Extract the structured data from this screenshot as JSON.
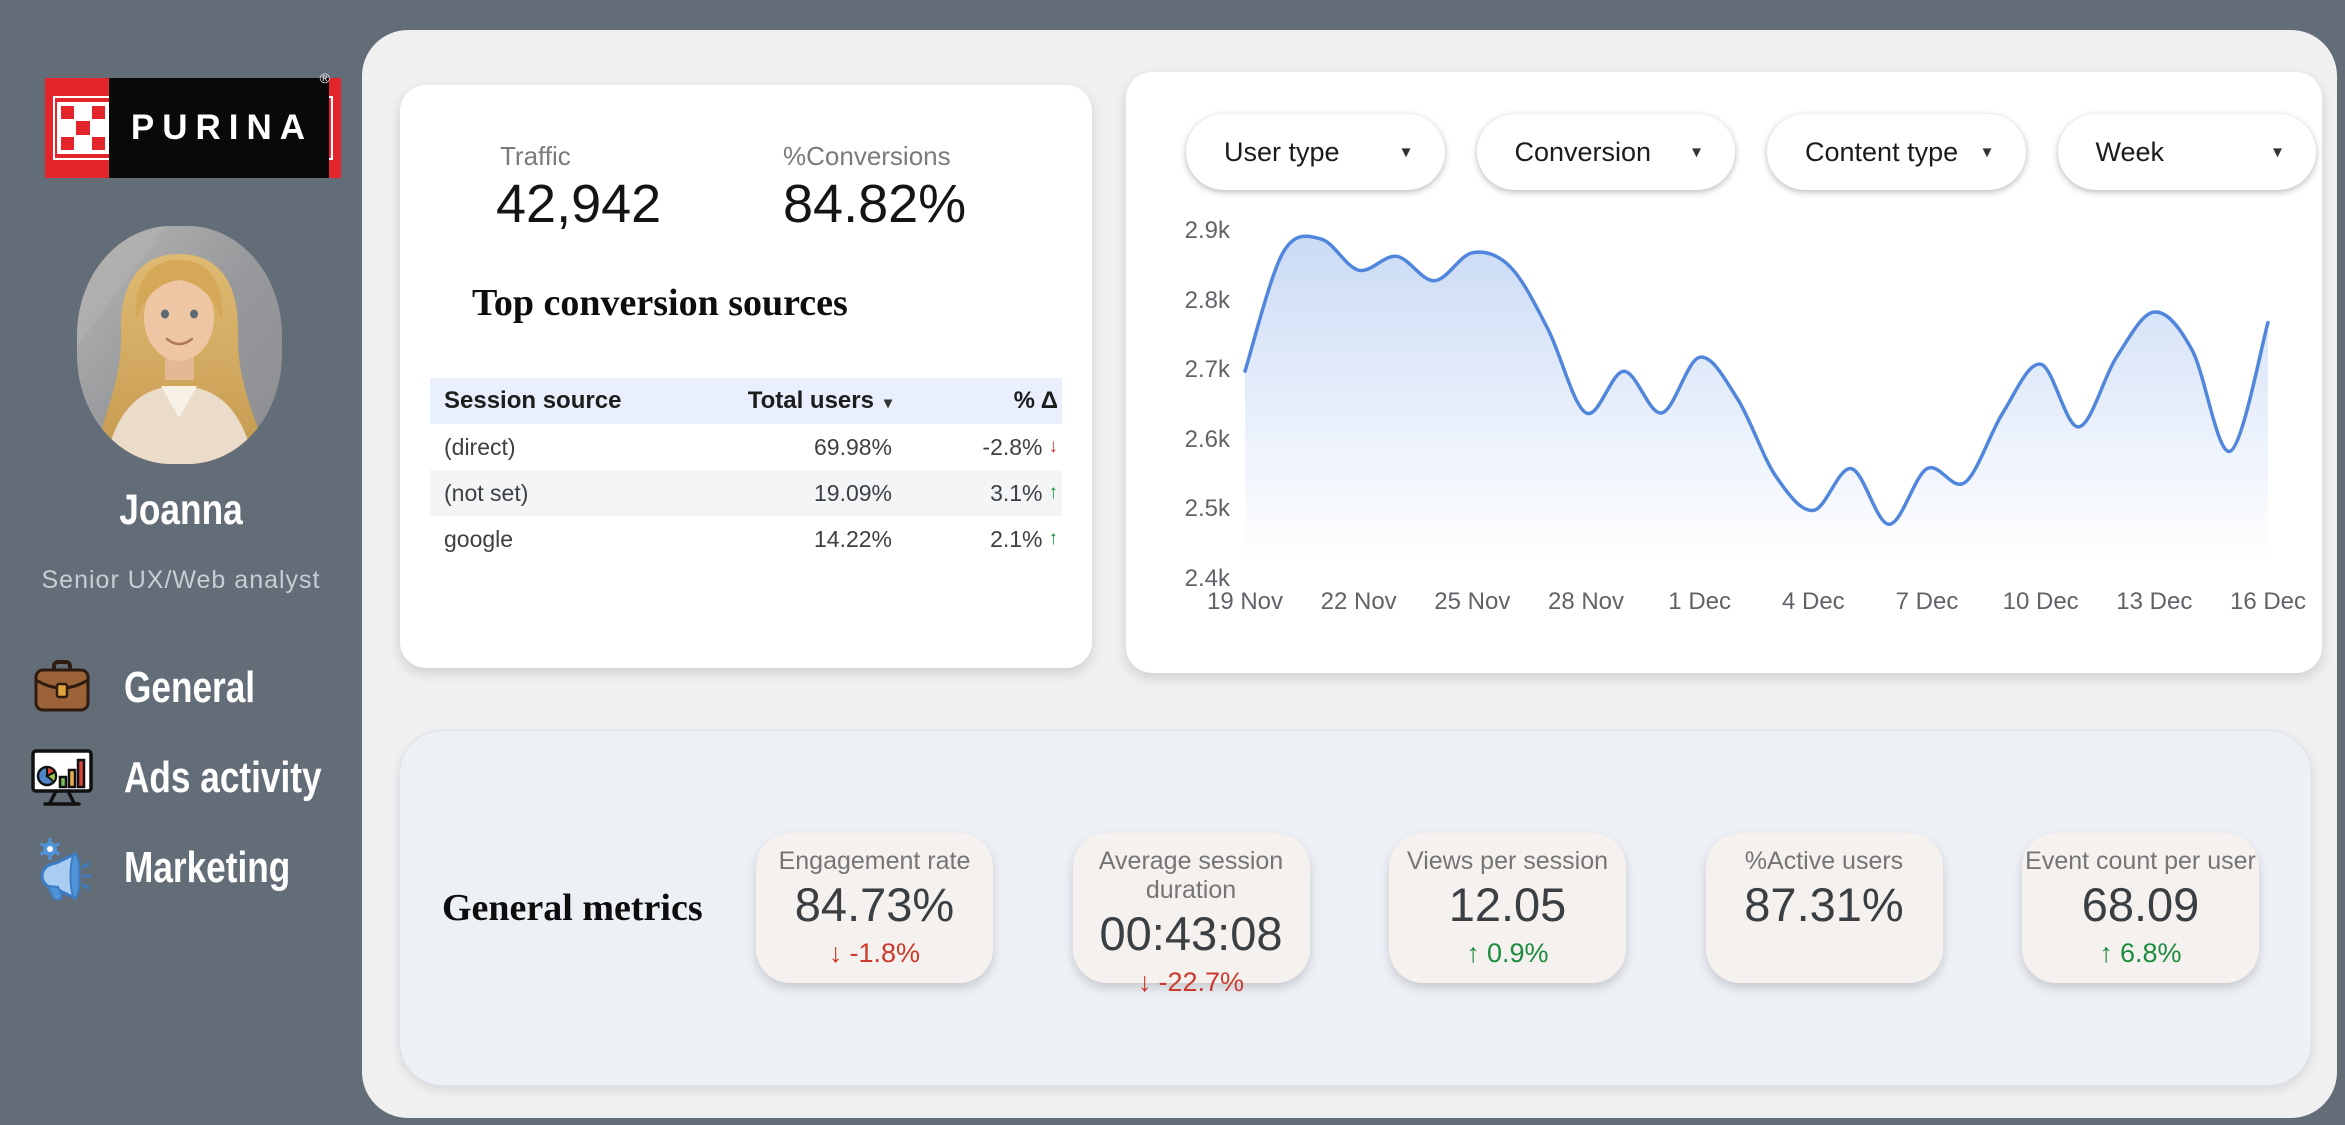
{
  "colors": {
    "sidebar_bg": "#636d78",
    "panel_bg": "#f0f0f1",
    "card_bg": "#ffffff",
    "purina_red": "#e3242b",
    "table_header_bg": "#e9effc",
    "row_alt_bg": "#f4f5f7",
    "chart_line": "#5186dd",
    "metrics_section_bg": "#edf1f6",
    "metric_card_bg": "#f5f1ee",
    "positive": "#1c8c3e",
    "negative": "#cb3a2c"
  },
  "glyphs": {
    "sort_caret": "▾",
    "dropdown_caret": "▾",
    "up_arrow": "↑",
    "down_arrow": "↓"
  },
  "sidebar": {
    "logo_text": "PURINA",
    "logo_registered": "®",
    "profile_name": "Joanna",
    "profile_role": "Senior UX/Web analyst",
    "nav": [
      {
        "label": "General",
        "icon": "briefcase-icon"
      },
      {
        "label": "Ads activity",
        "icon": "ads-monitor-icon"
      },
      {
        "label": "Marketing",
        "icon": "megaphone-icon"
      }
    ]
  },
  "stats_card": {
    "traffic_label": "Traffic",
    "traffic_value": "42,942",
    "conversions_label": "%Conversions",
    "conversions_value": "84.82%",
    "table_title": "Top conversion sources",
    "table": {
      "headers": [
        "Session source",
        "Total users",
        "% Δ"
      ],
      "rows": [
        {
          "source": "(direct)",
          "total_users": "69.98%",
          "delta": "-2.8%",
          "direction": "down"
        },
        {
          "source": "(not set)",
          "total_users": "19.09%",
          "delta": "3.1%",
          "direction": "up"
        },
        {
          "source": "google",
          "total_users": "14.22%",
          "delta": "2.1%",
          "direction": "up"
        }
      ]
    }
  },
  "chart_card": {
    "filters": [
      {
        "label": "User type"
      },
      {
        "label": "Conversion"
      },
      {
        "label": "Content type"
      },
      {
        "label": "Week"
      }
    ]
  },
  "chart_data": {
    "type": "area",
    "title": "",
    "xlabel": "",
    "ylabel": "",
    "grid": false,
    "legend": false,
    "ylim": [
      2.4,
      2.91
    ],
    "yticks": [
      "2.9k",
      "2.8k",
      "2.7k",
      "2.6k",
      "2.5k",
      "2.4k"
    ],
    "xticks": [
      "19 Nov",
      "22 Nov",
      "25 Nov",
      "28 Nov",
      "1 Dec",
      "4 Dec",
      "7 Dec",
      "10 Dec",
      "13 Dec",
      "16 Dec"
    ],
    "x": [
      "19 Nov",
      "20 Nov",
      "21 Nov",
      "22 Nov",
      "23 Nov",
      "24 Nov",
      "25 Nov",
      "26 Nov",
      "27 Nov",
      "28 Nov",
      "29 Nov",
      "30 Nov",
      "1 Dec",
      "2 Dec",
      "3 Dec",
      "4 Dec",
      "5 Dec",
      "6 Dec",
      "7 Dec",
      "8 Dec",
      "9 Dec",
      "10 Dec",
      "11 Dec",
      "12 Dec",
      "13 Dec",
      "14 Dec",
      "15 Dec",
      "16 Dec"
    ],
    "series": [
      {
        "name": "Traffic (thousands)",
        "values": [
          2.7,
          2.87,
          2.89,
          2.845,
          2.865,
          2.83,
          2.87,
          2.85,
          2.76,
          2.64,
          2.7,
          2.64,
          2.72,
          2.66,
          2.55,
          2.5,
          2.56,
          2.48,
          2.56,
          2.54,
          2.64,
          2.71,
          2.62,
          2.72,
          2.785,
          2.73,
          2.585,
          2.77
        ]
      }
    ]
  },
  "metrics_section": {
    "title": "General metrics",
    "cards": [
      {
        "label": "Engagement rate",
        "value": "84.73%",
        "delta": "-1.8%",
        "direction": "down"
      },
      {
        "label": "Average session duration",
        "value": "00:43:08",
        "delta": "-22.7%",
        "direction": "down"
      },
      {
        "label": "Views per session",
        "value": "12.05",
        "delta": "0.9%",
        "direction": "up"
      },
      {
        "label": "%Active users",
        "value": "87.31%",
        "delta": null,
        "direction": null
      },
      {
        "label": "Event count per user",
        "value": "68.09",
        "delta": "6.8%",
        "direction": "up"
      }
    ]
  }
}
